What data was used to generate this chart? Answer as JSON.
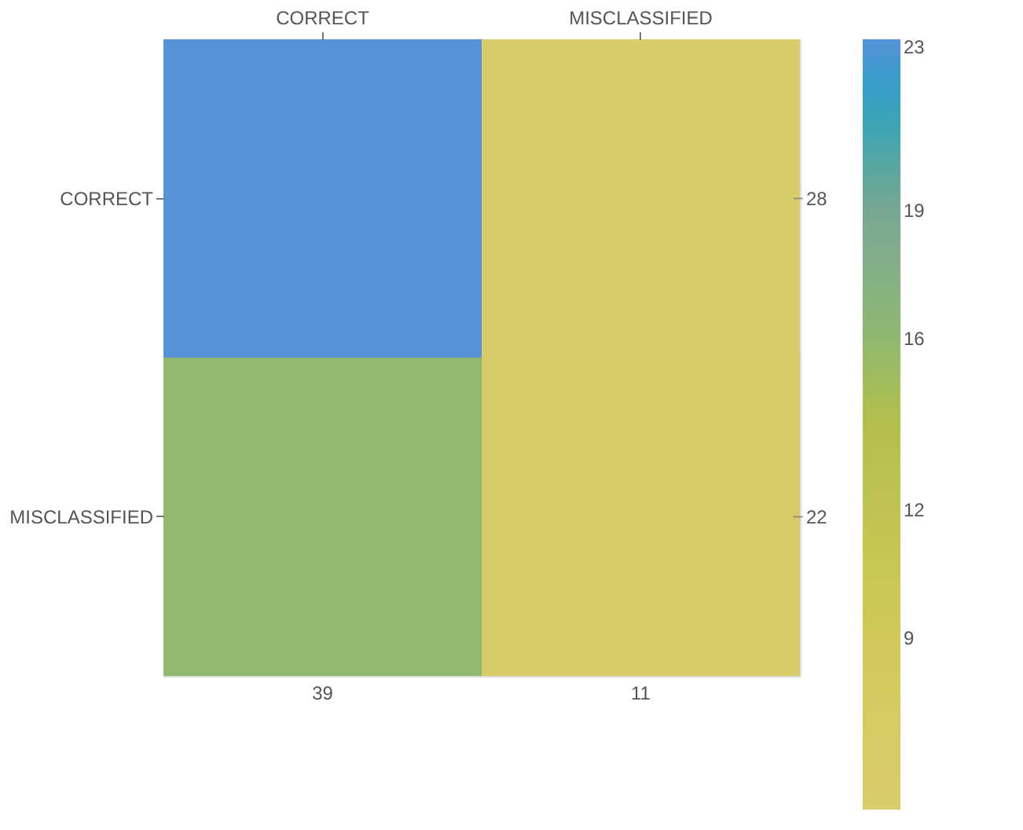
{
  "chart_data": {
    "type": "heatmap",
    "categories": [
      "CORRECT",
      "MISCLASSIFIED"
    ],
    "y_categories": [
      "CORRECT",
      "MISCLASSIFIED"
    ],
    "y2_categories": [
      "28",
      "22"
    ],
    "cells": [
      [
        23,
        5
      ],
      [
        16,
        6
      ]
    ],
    "clim": [
      5,
      23
    ],
    "cticks": [
      9,
      12,
      16,
      19,
      23
    ],
    "annotations": [
      "39",
      "11"
    ]
  }
}
